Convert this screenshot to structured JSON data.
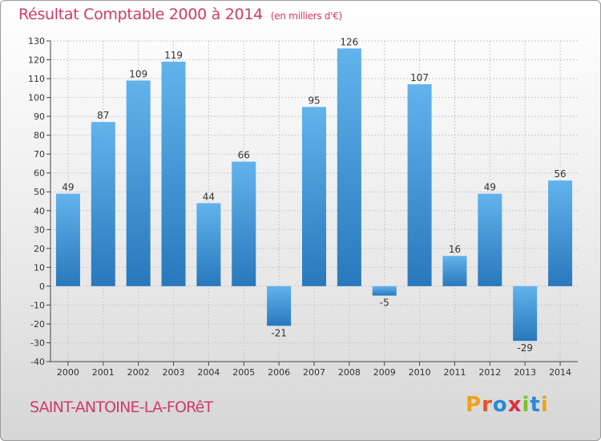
{
  "header": {
    "title": "Résultat Comptable 2000 à 2014",
    "unit": "(en milliers d'€)"
  },
  "footer": {
    "commune": "SAINT-ANTOINE-LA-FORêT",
    "logo_text": "Proxiti"
  },
  "colors": {
    "title": "#d03a6c",
    "bar_light": "#62b3ec",
    "bar_dark": "#2878bd"
  },
  "chart_data": {
    "type": "bar",
    "title": "Résultat Comptable 2000 à 2014",
    "subtitle": "(en milliers d'€)",
    "xlabel": "",
    "ylabel": "",
    "categories": [
      "2000",
      "2001",
      "2002",
      "2003",
      "2004",
      "2005",
      "2006",
      "2007",
      "2008",
      "2009",
      "2010",
      "2011",
      "2012",
      "2013",
      "2014"
    ],
    "values": [
      49,
      87,
      109,
      119,
      44,
      66,
      -21,
      95,
      126,
      -5,
      107,
      16,
      49,
      -29,
      56
    ],
    "ylim": [
      -40,
      130
    ],
    "yticks": [
      130,
      120,
      110,
      100,
      90,
      80,
      70,
      60,
      50,
      40,
      30,
      20,
      10,
      0,
      -10,
      -20,
      -30,
      -40
    ],
    "grid": true,
    "legend": "none"
  }
}
